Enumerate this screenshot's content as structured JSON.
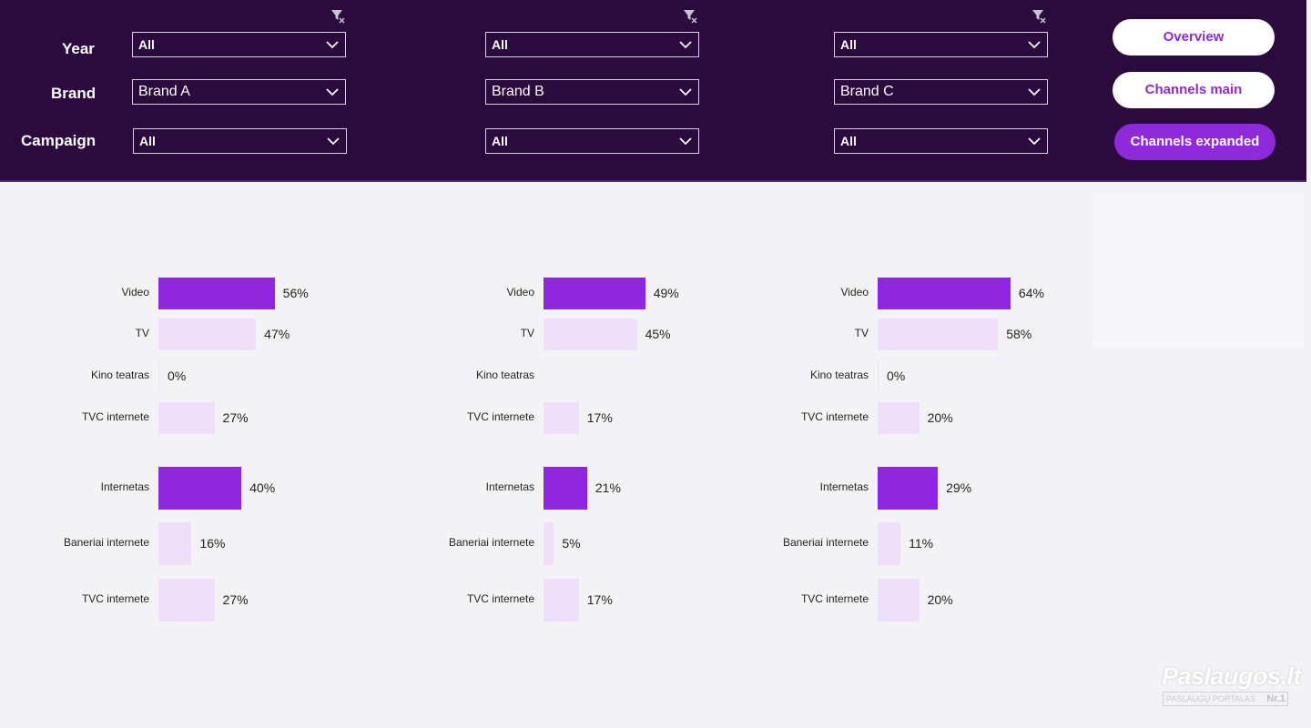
{
  "filters": {
    "row_labels": {
      "year": "Year",
      "brand": "Brand",
      "campaign": "Campaign"
    },
    "columns": [
      {
        "year": "All",
        "brand": "Brand A",
        "campaign": "All"
      },
      {
        "year": "All",
        "brand": "Brand B",
        "campaign": "All"
      },
      {
        "year": "All",
        "brand": "Brand C",
        "campaign": "All"
      }
    ]
  },
  "nav": {
    "overview": "Overview",
    "channels_main": "Channels main",
    "channels_expanded": "Channels expanded"
  },
  "colors": {
    "header_bg": "#2b0a3d",
    "accent": "#8f2adb",
    "bar_main": "#8f25dc",
    "bar_light": "#eee0f9"
  },
  "chart_data": [
    {
      "type": "bar",
      "categories": [
        "Video",
        "TV",
        "Kino teatras",
        "TVC internete",
        "Internetas",
        "Baneriai internete",
        "TVC internete"
      ],
      "values": [
        56,
        47,
        0,
        27,
        40,
        16,
        27
      ],
      "labels": [
        "56%",
        "47%",
        "0%",
        "27%",
        "40%",
        "16%",
        "27%"
      ]
    },
    {
      "type": "bar",
      "categories": [
        "Video",
        "TV",
        "Kino teatras",
        "TVC internete",
        "Internetas",
        "Baneriai internete",
        "TVC internete"
      ],
      "values": [
        49,
        45,
        null,
        17,
        21,
        5,
        17
      ],
      "labels": [
        "49%",
        "45%",
        "",
        "17%",
        "21%",
        "5%",
        "17%"
      ]
    },
    {
      "type": "bar",
      "categories": [
        "Video",
        "TV",
        "Kino teatras",
        "TVC internete",
        "Internetas",
        "Baneriai internete",
        "TVC internete"
      ],
      "values": [
        64,
        58,
        0,
        20,
        29,
        11,
        20
      ],
      "labels": [
        "64%",
        "58%",
        "0%",
        "20%",
        "29%",
        "11%",
        "20%"
      ]
    }
  ],
  "watermark": {
    "title": "Paslaugos.lt",
    "subtitle": "PASLAUGŲ PORTALAS",
    "badge": "Nr.1"
  }
}
